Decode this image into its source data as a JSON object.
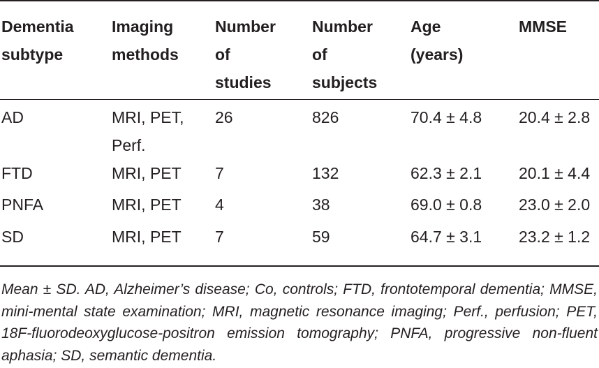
{
  "table": {
    "headers": [
      "Dementia\nsubtype",
      "Imaging\nmethods",
      "Number\nof\nstudies",
      "Number\nof\nsubjects",
      "Age\n(years)",
      "MMSE"
    ],
    "rows": [
      [
        "AD",
        "MRI, PET,\nPerf.",
        "26",
        "826",
        "70.4 ± 4.8",
        "20.4 ± 2.8"
      ],
      [
        "FTD",
        "MRI, PET",
        "7",
        "132",
        "62.3 ± 2.1",
        "20.1 ± 4.4"
      ],
      [
        "PNFA",
        "MRI, PET",
        "4",
        "38",
        "69.0 ± 0.8",
        "23.0 ± 2.0"
      ],
      [
        "SD",
        "MRI, PET",
        "7",
        "59",
        "64.7 ± 3.1",
        "23.2 ± 1.2"
      ]
    ]
  },
  "footnote": "Mean ± SD. AD, Alzheimer’s disease; Co, controls; FTD, frontotemporal dementia; MMSE, mini-mental state examination; MRI, magnetic resonance imaging; Perf., perfusion; PET, 18F-fluorodeoxyglucose-positron emission tomography; PNFA, progressive non-fluent aphasia; SD, semantic dementia."
}
